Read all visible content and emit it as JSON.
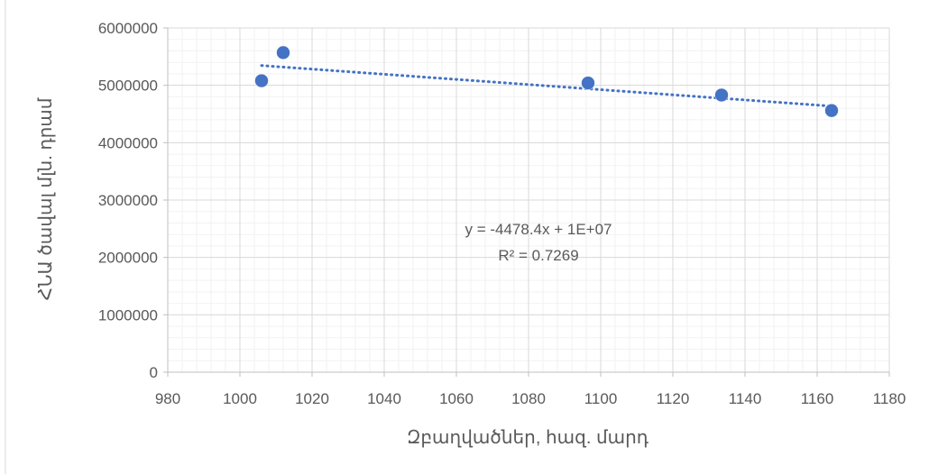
{
  "chart_data": {
    "type": "scatter",
    "title": "",
    "xlabel": "Զբաղվածներ, հազ. մարդ",
    "ylabel": "ՀՆԱ ծավալ մլն. դրամ",
    "xlim": [
      980,
      1180
    ],
    "ylim": [
      0,
      6000000
    ],
    "x_ticks": [
      "980",
      "1000",
      "1020",
      "1040",
      "1060",
      "1080",
      "1100",
      "1120",
      "1140",
      "1160",
      "1180"
    ],
    "y_ticks": [
      "0",
      "1000000",
      "2000000",
      "3000000",
      "4000000",
      "5000000",
      "6000000"
    ],
    "grid": true,
    "legend": "none",
    "series": [
      {
        "color": "#4472c4",
        "points": [
          {
            "x": 1006,
            "y": 5080000
          },
          {
            "x": 1012,
            "y": 5570000
          },
          {
            "x": 1096.5,
            "y": 5040000
          },
          {
            "x": 1133.5,
            "y": 4830000
          },
          {
            "x": 1164,
            "y": 4560000
          }
        ]
      }
    ],
    "trendline": {
      "type": "linear",
      "style": "dotted",
      "color": "#4472c4",
      "slope": -4478.4,
      "intercept": 9850000,
      "x_range": [
        1006,
        1164
      ],
      "equation_label": "y = -4478.4x + 1E+07",
      "r2_label": "R² = 0.7269"
    }
  }
}
